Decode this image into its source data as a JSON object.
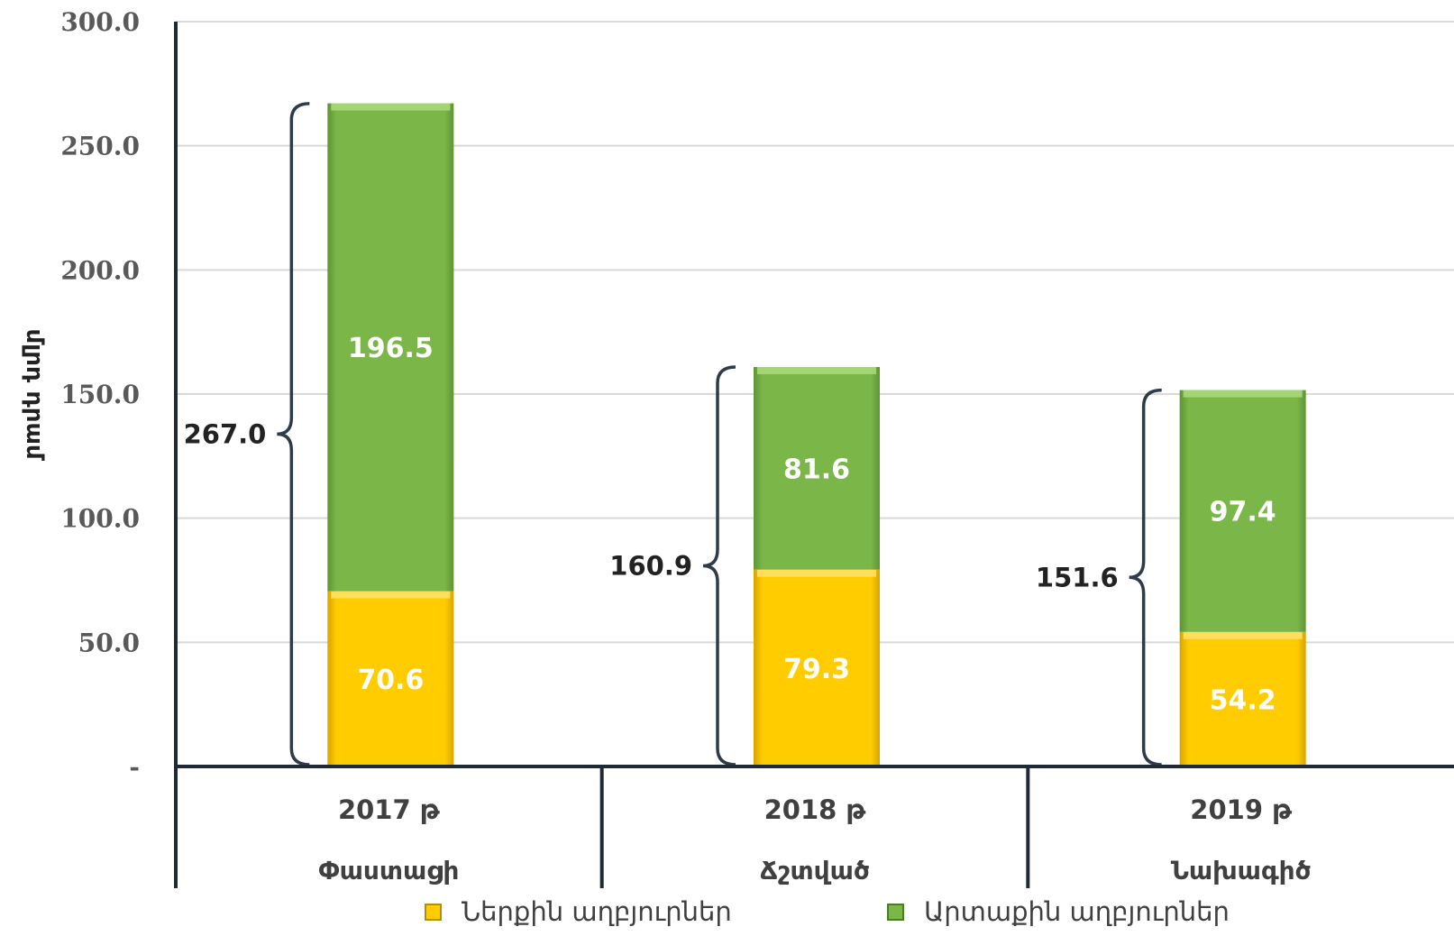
{
  "chart_data": {
    "type": "bar",
    "stacked": true,
    "ylabel": "մլրդ դրամ",
    "ylim": [
      0,
      300
    ],
    "yticks": [
      "-",
      "50.0",
      "100.0",
      "150.0",
      "200.0",
      "250.0",
      "300.0"
    ],
    "grid": true,
    "legend_position": "bottom",
    "categories": [
      {
        "year": "2017 թ",
        "type": "Փաստացի"
      },
      {
        "year": "2018 թ",
        "type": "Ճշտված"
      },
      {
        "year": "2019 թ",
        "type": "Նախագիծ"
      }
    ],
    "series": [
      {
        "name": "Ներքին աղբյուրներ",
        "color": "#FFCC00",
        "values": [
          70.6,
          79.3,
          54.2
        ],
        "labels": [
          "70.6",
          "79.3",
          "54.2"
        ]
      },
      {
        "name": "Արտաքին աղբյուրներ",
        "color": "#7AB648",
        "values": [
          196.5,
          81.6,
          97.4
        ],
        "labels": [
          "196.5",
          "81.6",
          "97.4"
        ]
      }
    ],
    "totals": [
      267.0,
      160.9,
      151.6
    ],
    "total_labels": [
      "267.0",
      "160.9",
      "151.6"
    ]
  }
}
